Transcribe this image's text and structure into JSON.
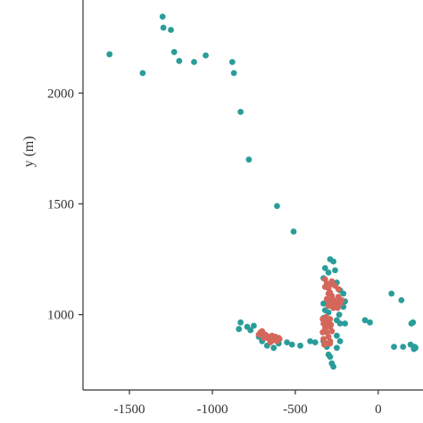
{
  "chart_data": {
    "type": "scatter",
    "title": "",
    "xlabel": "",
    "ylabel": "y (m)",
    "xlim": [
      -1780,
      270
    ],
    "ylim": [
      660,
      2420
    ],
    "xticks": [
      -1500,
      -1000,
      -500,
      0
    ],
    "xtick_labels": [
      "-1500",
      "-1000",
      "-500",
      "0"
    ],
    "yticks": [
      1000,
      1500,
      2000
    ],
    "ytick_labels": [
      "1000",
      "1500",
      "2000"
    ],
    "grid": false,
    "legend": "none",
    "series": [
      {
        "color": "#2a9d9a",
        "points": [
          [
            -1620,
            2175
          ],
          [
            -1300,
            2345
          ],
          [
            -1295,
            2295
          ],
          [
            -1250,
            2285
          ],
          [
            -1230,
            2185
          ],
          [
            -1200,
            2145
          ],
          [
            -1420,
            2090
          ],
          [
            -1110,
            2140
          ],
          [
            -1040,
            2170
          ],
          [
            -880,
            2140
          ],
          [
            -870,
            2090
          ],
          [
            -830,
            1915
          ],
          [
            -780,
            1700
          ],
          [
            -610,
            1490
          ],
          [
            -510,
            1375
          ],
          [
            -290,
            1250
          ],
          [
            -270,
            1240
          ],
          [
            -320,
            1210
          ],
          [
            -300,
            1190
          ],
          [
            -260,
            1200
          ],
          [
            -330,
            1165
          ],
          [
            -250,
            1145
          ],
          [
            -230,
            1110
          ],
          [
            -210,
            1095
          ],
          [
            -200,
            1060
          ],
          [
            -330,
            1050
          ],
          [
            -320,
            1020
          ],
          [
            -330,
            985
          ],
          [
            -210,
            1035
          ],
          [
            -235,
            1000
          ],
          [
            -250,
            975
          ],
          [
            -200,
            960
          ],
          [
            -300,
            1010
          ],
          [
            -315,
            955
          ],
          [
            -250,
            905
          ],
          [
            -230,
            880
          ],
          [
            -250,
            850
          ],
          [
            -330,
            880
          ],
          [
            -310,
            855
          ],
          [
            -300,
            820
          ],
          [
            -290,
            810
          ],
          [
            -280,
            780
          ],
          [
            -270,
            765
          ],
          [
            -840,
            935
          ],
          [
            -830,
            965
          ],
          [
            -790,
            945
          ],
          [
            -770,
            930
          ],
          [
            -750,
            950
          ],
          [
            -720,
            900
          ],
          [
            -700,
            880
          ],
          [
            -670,
            860
          ],
          [
            -630,
            850
          ],
          [
            -600,
            870
          ],
          [
            -550,
            875
          ],
          [
            -520,
            865
          ],
          [
            -470,
            860
          ],
          [
            -410,
            880
          ],
          [
            -380,
            875
          ],
          [
            -230,
            960
          ],
          [
            -80,
            975
          ],
          [
            -50,
            965
          ],
          [
            80,
            1095
          ],
          [
            140,
            1065
          ],
          [
            200,
            960
          ],
          [
            210,
            965
          ],
          [
            95,
            855
          ],
          [
            150,
            855
          ],
          [
            195,
            865
          ],
          [
            220,
            855
          ],
          [
            215,
            845
          ],
          [
            225,
            850
          ]
        ]
      },
      {
        "color": "#d4675b",
        "points": [
          [
            -320,
            1160
          ],
          [
            -310,
            1140
          ],
          [
            -300,
            1120
          ],
          [
            -290,
            1100
          ],
          [
            -280,
            1085
          ],
          [
            -275,
            1070
          ],
          [
            -265,
            1060
          ],
          [
            -250,
            1055
          ],
          [
            -240,
            1080
          ],
          [
            -300,
            1095
          ],
          [
            -310,
            1070
          ],
          [
            -295,
            1055
          ],
          [
            -285,
            1040
          ],
          [
            -270,
            1030
          ],
          [
            -260,
            1045
          ],
          [
            -245,
            1030
          ],
          [
            -230,
            1050
          ],
          [
            -220,
            1065
          ],
          [
            -240,
            1115
          ],
          [
            -260,
            1130
          ],
          [
            -290,
            1135
          ],
          [
            -280,
            1150
          ],
          [
            -320,
            1125
          ],
          [
            -300,
            1040
          ],
          [
            -335,
            980
          ],
          [
            -330,
            960
          ],
          [
            -320,
            940
          ],
          [
            -310,
            920
          ],
          [
            -300,
            900
          ],
          [
            -290,
            880
          ],
          [
            -310,
            870
          ],
          [
            -330,
            890
          ],
          [
            -300,
            960
          ],
          [
            -290,
            945
          ],
          [
            -280,
            925
          ],
          [
            -315,
            990
          ],
          [
            -290,
            980
          ],
          [
            -335,
            920
          ],
          [
            -325,
            865
          ],
          [
            -290,
            870
          ],
          [
            -285,
            955
          ],
          [
            -305,
            975
          ],
          [
            -710,
            920
          ],
          [
            -690,
            905
          ],
          [
            -670,
            895
          ],
          [
            -650,
            890
          ],
          [
            -630,
            885
          ],
          [
            -610,
            880
          ],
          [
            -595,
            890
          ],
          [
            -720,
            910
          ],
          [
            -700,
            925
          ],
          [
            -680,
            910
          ],
          [
            -660,
            900
          ],
          [
            -640,
            905
          ],
          [
            -620,
            900
          ],
          [
            -600,
            895
          ],
          [
            -650,
            875
          ],
          [
            -690,
            895
          ]
        ]
      }
    ]
  }
}
